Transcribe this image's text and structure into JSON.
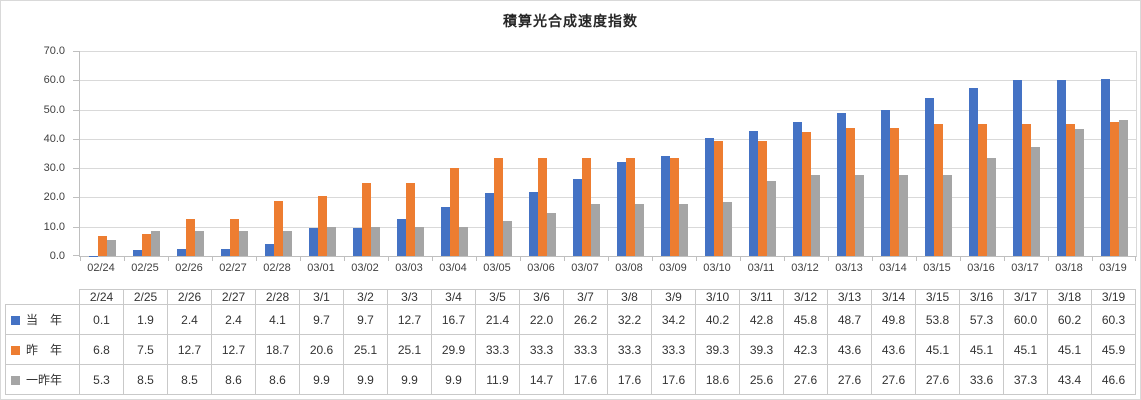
{
  "chart_data": {
    "type": "bar",
    "title": "積算光合成速度指数",
    "categories": [
      "02/24",
      "02/25",
      "02/26",
      "02/27",
      "02/28",
      "03/01",
      "03/02",
      "03/03",
      "03/04",
      "03/05",
      "03/06",
      "03/07",
      "03/08",
      "03/09",
      "03/10",
      "03/11",
      "03/12",
      "03/13",
      "03/14",
      "03/15",
      "03/16",
      "03/17",
      "03/18",
      "03/19"
    ],
    "series": [
      {
        "name": "当　年",
        "color": "#4472C4",
        "values": [
          0.1,
          1.9,
          2.4,
          2.4,
          4.1,
          9.7,
          9.7,
          12.7,
          16.7,
          21.4,
          22.0,
          26.2,
          32.2,
          34.2,
          40.2,
          42.8,
          45.8,
          48.7,
          49.8,
          53.8,
          57.3,
          60.0,
          60.2,
          60.3
        ]
      },
      {
        "name": "昨　年",
        "color": "#ED7D31",
        "values": [
          6.8,
          7.5,
          12.7,
          12.7,
          18.7,
          20.6,
          25.1,
          25.1,
          29.9,
          33.3,
          33.3,
          33.3,
          33.3,
          33.3,
          39.3,
          39.3,
          42.3,
          43.6,
          43.6,
          45.1,
          45.1,
          45.1,
          45.1,
          45.9
        ]
      },
      {
        "name": "一昨年",
        "color": "#A5A5A5",
        "values": [
          5.3,
          8.5,
          8.5,
          8.6,
          8.6,
          9.9,
          9.9,
          9.9,
          9.9,
          11.9,
          14.7,
          17.6,
          17.6,
          17.6,
          18.6,
          25.6,
          27.6,
          27.6,
          27.6,
          27.6,
          33.6,
          37.3,
          43.4,
          46.6
        ]
      }
    ],
    "xlabel": "",
    "ylabel": "",
    "ylim": [
      0,
      70
    ],
    "ytick_step": 10,
    "ytick_labels": [
      "0.0",
      "10.0",
      "20.0",
      "30.0",
      "40.0",
      "50.0",
      "60.0",
      "70.0"
    ],
    "grid": true,
    "legend_position": "data-table-left",
    "value_decimals": 1
  },
  "data_table": {
    "col_headers": [
      "2/24",
      "2/25",
      "2/26",
      "2/27",
      "2/28",
      "3/1",
      "3/2",
      "3/3",
      "3/4",
      "3/5",
      "3/6",
      "3/7",
      "3/8",
      "3/9",
      "3/10",
      "3/11",
      "3/12",
      "3/13",
      "3/14",
      "3/15",
      "3/16",
      "3/17",
      "3/18",
      "3/19"
    ]
  },
  "colors": {
    "series_blue": "#4472C4",
    "series_orange": "#ED7D31",
    "series_gray": "#A5A5A5",
    "gridline": "#d9d9d9",
    "axis_line": "#bfbfbf",
    "table_border": "#c9c9c9",
    "text": "#404040"
  }
}
